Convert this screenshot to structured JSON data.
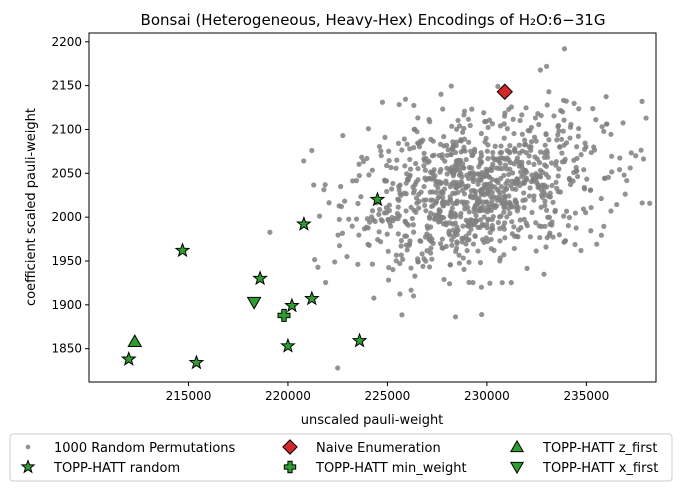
{
  "chart_data": {
    "type": "scatter",
    "title": "Bonsai (Heterogeneous, Heavy-Hex) Encodings of H₂O:6−31G",
    "xlabel": "unscaled pauli-weight",
    "ylabel": "coefficient scaled pauli-weight",
    "xlim": [
      210000,
      238500
    ],
    "ylim": [
      1812,
      2210
    ],
    "xticks": [
      215000,
      220000,
      225000,
      230000,
      235000
    ],
    "yticks": [
      1850,
      1900,
      1950,
      2000,
      2050,
      2100,
      2150,
      2200
    ],
    "grid": false,
    "legend_position": "below",
    "random_cloud": {
      "name": "1000 Random Permutations",
      "count": 1000,
      "color": "#808080",
      "center": [
        229500,
        2030
      ],
      "spread": [
        3200,
        42
      ],
      "outliers": [
        [
          222500,
          1828
        ],
        [
          221200,
          2076
        ],
        [
          233000,
          2172
        ],
        [
          233900,
          2192
        ],
        [
          237800,
          2132
        ],
        [
          236900,
          2048
        ]
      ]
    },
    "series": [
      {
        "name": "Naive Enumeration",
        "marker": "diamond",
        "color": "#d62728",
        "points": [
          [
            230900,
            2143
          ]
        ]
      },
      {
        "name": "TOPP-HATT random",
        "marker": "star",
        "color": "#2ca02c",
        "points": [
          [
            212000,
            1838
          ],
          [
            214700,
            1962
          ],
          [
            215400,
            1834
          ],
          [
            218600,
            1930
          ],
          [
            220000,
            1853
          ],
          [
            220200,
            1899
          ],
          [
            220800,
            1992
          ],
          [
            221200,
            1907
          ],
          [
            223600,
            1859
          ],
          [
            224500,
            2020
          ]
        ]
      },
      {
        "name": "TOPP-HATT min_weight",
        "marker": "plus",
        "color": "#2ca02c",
        "points": [
          [
            219800,
            1888
          ]
        ]
      },
      {
        "name": "TOPP-HATT z_first",
        "marker": "triangle-up",
        "color": "#2ca02c",
        "points": [
          [
            212300,
            1858
          ]
        ]
      },
      {
        "name": "TOPP-HATT x_first",
        "marker": "triangle-down",
        "color": "#2ca02c",
        "points": [
          [
            218300,
            1903
          ]
        ]
      }
    ]
  }
}
